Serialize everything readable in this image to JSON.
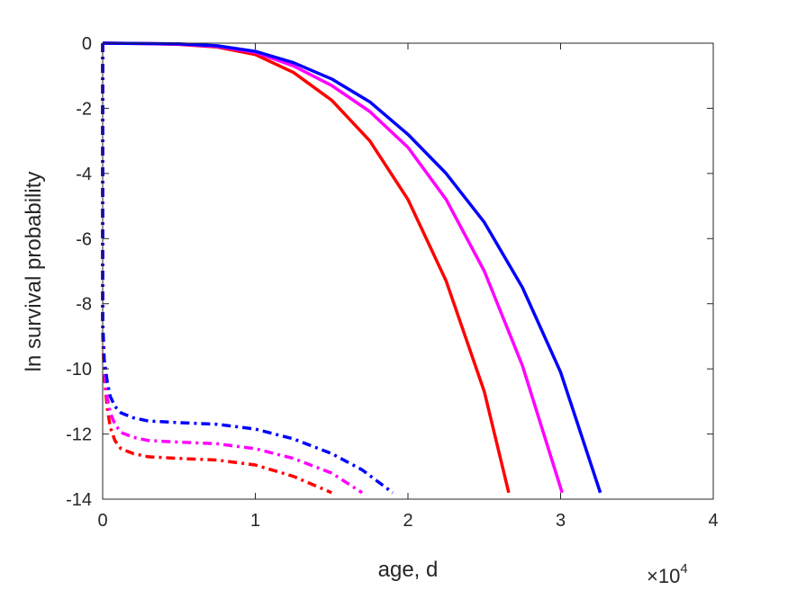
{
  "chart_data": {
    "type": "line",
    "title": "",
    "xlabel": "age, d",
    "ylabel": "ln survival probability",
    "xlim": [
      0,
      4
    ],
    "ylim": [
      -14,
      0
    ],
    "x_ticks": [
      0,
      1,
      2,
      3,
      4
    ],
    "x_tick_labels": [
      "0",
      "1",
      "2",
      "3",
      "4"
    ],
    "y_ticks": [
      0,
      -2,
      -4,
      -6,
      -8,
      -10,
      -12,
      -14
    ],
    "y_tick_labels": [
      "0",
      "-2",
      "-4",
      "-6",
      "-8",
      "-10",
      "-12",
      "-14"
    ],
    "x_multiplier_base": "×10",
    "x_multiplier_exp": "4",
    "grid": false,
    "colors": {
      "red": "#ff0000",
      "magenta": "#ff00ff",
      "blue": "#0000ff",
      "axis": "#262626"
    },
    "series": [
      {
        "color": "#ff0000",
        "style": "solid",
        "x": [
          0.0,
          0.25,
          0.5,
          0.75,
          1.0,
          1.25,
          1.5,
          1.75,
          2.0,
          2.25,
          2.5,
          2.66
        ],
        "y": [
          0.0,
          -0.01,
          -0.04,
          -0.12,
          -0.35,
          -0.9,
          -1.75,
          -3.0,
          -4.8,
          -7.3,
          -10.7,
          -13.8
        ]
      },
      {
        "color": "#ff00ff",
        "style": "solid",
        "x": [
          0.0,
          0.25,
          0.5,
          0.75,
          1.0,
          1.25,
          1.5,
          1.75,
          2.0,
          2.25,
          2.5,
          2.75,
          3.01
        ],
        "y": [
          0.0,
          -0.01,
          -0.03,
          -0.1,
          -0.28,
          -0.7,
          -1.3,
          -2.1,
          -3.2,
          -4.8,
          -7.0,
          -9.9,
          -13.8
        ]
      },
      {
        "color": "#0000ff",
        "style": "solid",
        "x": [
          0.0,
          0.25,
          0.5,
          0.75,
          1.0,
          1.25,
          1.5,
          1.75,
          2.0,
          2.25,
          2.5,
          2.75,
          3.0,
          3.26
        ],
        "y": [
          0.0,
          -0.01,
          -0.02,
          -0.08,
          -0.25,
          -0.6,
          -1.1,
          -1.8,
          -2.8,
          -4.0,
          -5.5,
          -7.5,
          -10.1,
          -13.8
        ]
      },
      {
        "color": "#ff0000",
        "style": "dashdot",
        "x": [
          0.0,
          0.0,
          0.01,
          0.03,
          0.05,
          0.08,
          0.12,
          0.2,
          0.3,
          0.5,
          0.75,
          1.0,
          1.25,
          1.5
        ],
        "y": [
          0.0,
          -9.0,
          -10.2,
          -11.2,
          -11.8,
          -12.2,
          -12.45,
          -12.6,
          -12.7,
          -12.75,
          -12.8,
          -12.95,
          -13.3,
          -13.8
        ]
      },
      {
        "color": "#ff00ff",
        "style": "dashdot",
        "x": [
          0.0,
          0.0,
          0.01,
          0.03,
          0.05,
          0.08,
          0.12,
          0.2,
          0.3,
          0.5,
          0.75,
          1.0,
          1.25,
          1.5,
          1.7
        ],
        "y": [
          0.0,
          -8.8,
          -10.0,
          -10.9,
          -11.35,
          -11.7,
          -11.95,
          -12.1,
          -12.2,
          -12.25,
          -12.3,
          -12.45,
          -12.75,
          -13.2,
          -13.8
        ]
      },
      {
        "color": "#0000ff",
        "style": "dashdot",
        "x": [
          0.0,
          0.0,
          0.01,
          0.03,
          0.05,
          0.08,
          0.12,
          0.2,
          0.3,
          0.5,
          0.75,
          1.0,
          1.25,
          1.5,
          1.7,
          1.9
        ],
        "y": [
          0.0,
          -8.5,
          -9.7,
          -10.4,
          -10.85,
          -11.15,
          -11.35,
          -11.5,
          -11.6,
          -11.65,
          -11.7,
          -11.85,
          -12.15,
          -12.6,
          -13.1,
          -13.8
        ]
      }
    ]
  }
}
